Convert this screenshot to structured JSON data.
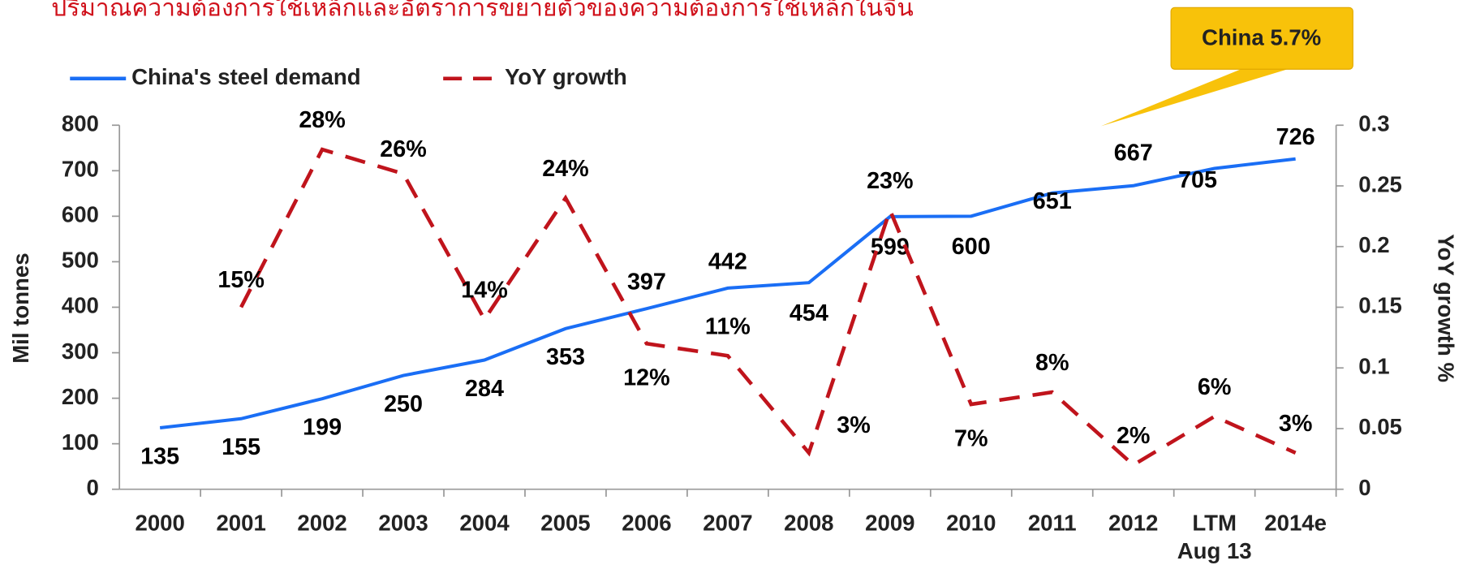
{
  "chart_data": {
    "type": "line",
    "title": "ปริมาณความต้องการใช้เหล็กและอัตราการขยายตัวของความต้องการใช้เหล็กในจีน",
    "annotation": "China 5.7%",
    "categories": [
      "2000",
      "2001",
      "2002",
      "2003",
      "2004",
      "2005",
      "2006",
      "2007",
      "2008",
      "2009",
      "2010",
      "2011",
      "2012",
      "LTM\nAug 13",
      "2014e"
    ],
    "series": [
      {
        "name": "China's steel demand",
        "color": "#1a6ef5",
        "axis": "y",
        "values": [
          135,
          155,
          199,
          250,
          284,
          353,
          397,
          442,
          454,
          599,
          600,
          651,
          667,
          705,
          726
        ]
      },
      {
        "name": "YoY growth",
        "color": "#c0141c",
        "axis": "y2",
        "values": [
          null,
          0.15,
          0.28,
          0.26,
          0.14,
          0.24,
          0.12,
          0.11,
          0.03,
          0.23,
          0.07,
          0.08,
          0.02,
          0.06,
          0.03
        ],
        "value_labels": [
          null,
          "15%",
          "28%",
          "26%",
          "14%",
          "24%",
          "12%",
          "11%",
          "3%",
          "23%",
          "7%",
          "8%",
          "2%",
          "6%",
          "3%"
        ]
      }
    ],
    "ylabel": "Mil tonnes",
    "y2label": "YoY growth %",
    "ylim": [
      0,
      800
    ],
    "yticks": [
      0,
      100,
      200,
      300,
      400,
      500,
      600,
      700,
      800
    ],
    "y2lim": [
      0,
      0.3
    ],
    "y2ticks": [
      0,
      0.05,
      0.1,
      0.15,
      0.2,
      0.25,
      0.3
    ],
    "legend": "top-left"
  }
}
